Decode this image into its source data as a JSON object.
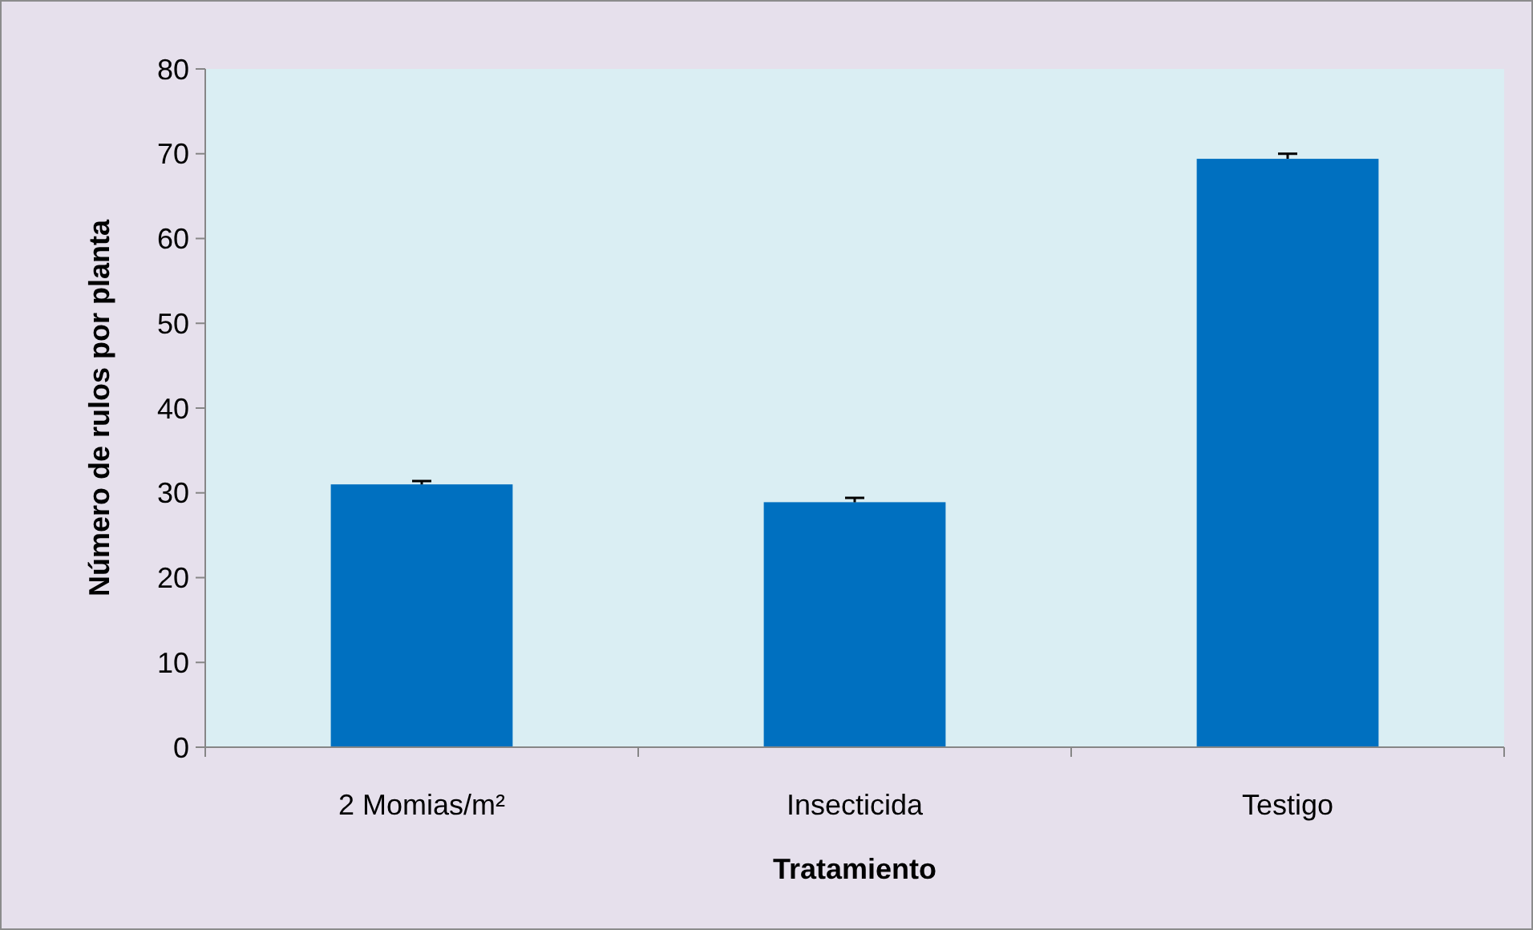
{
  "chart_data": {
    "type": "bar",
    "xlabel": "Tratamiento",
    "ylabel": "Número de rulos por planta",
    "categories": [
      "2 Momias/m²",
      "Insecticida",
      "Testigo"
    ],
    "values": [
      31.0,
      28.9,
      69.4
    ],
    "color": "#0070c0",
    "errors": [
      [
        31.0,
        31.4
      ],
      [
        28.9,
        29.4
      ],
      [
        69.4,
        70.0
      ]
    ],
    "ylim": [
      0,
      80
    ],
    "yticks": [
      0,
      10,
      20,
      30,
      40,
      50,
      60,
      70,
      80
    ],
    "grid": false
  }
}
